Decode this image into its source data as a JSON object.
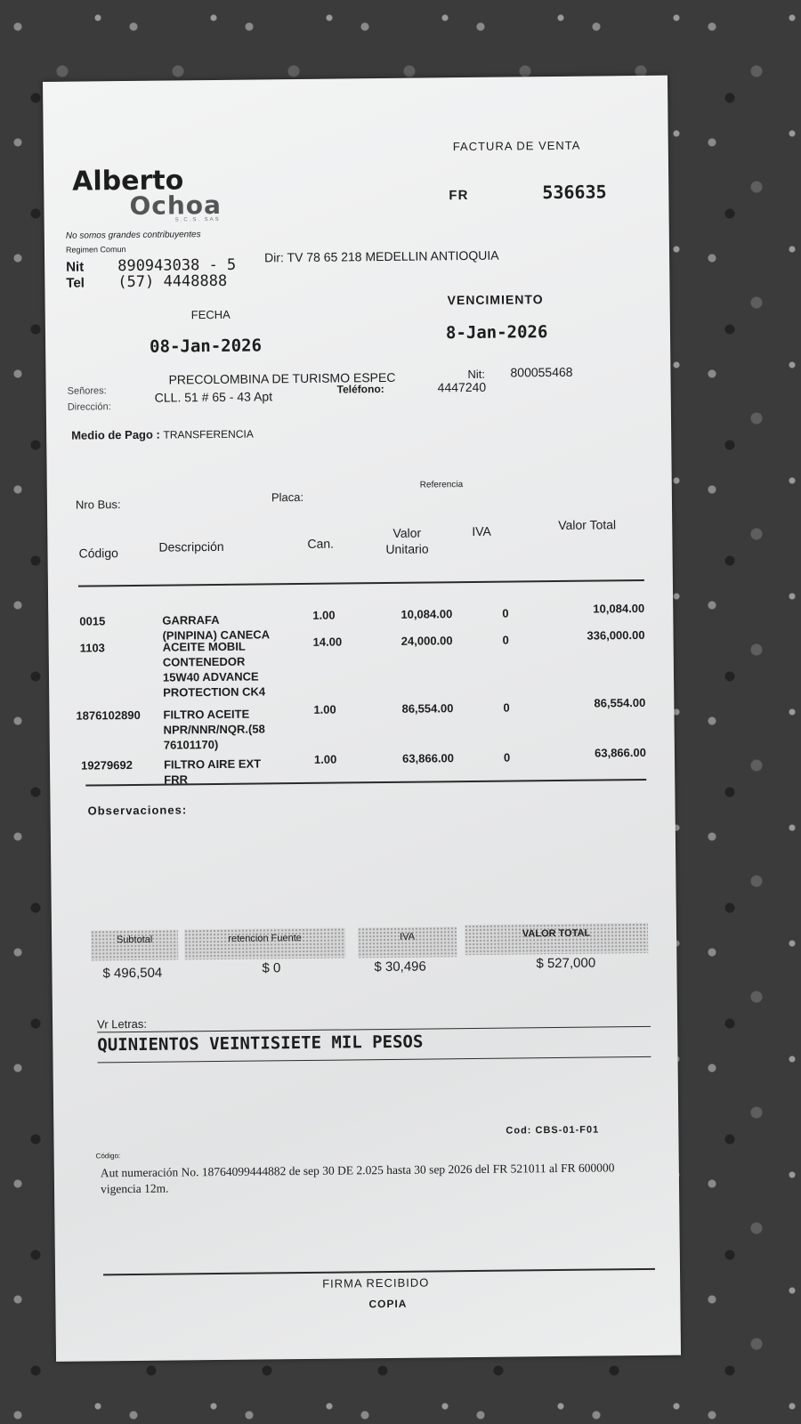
{
  "header": {
    "doc_type": "FACTURA DE VENTA",
    "logo": {
      "line1": "Alberto",
      "line2": "Ochoa",
      "line3": "S.C.S. SAS"
    },
    "fr_label": "FR",
    "invoice_number": "536635",
    "tax_note": "No somos grandes contribuyentes",
    "regime": "Regimen Comun",
    "nit_label": "Nit",
    "nit": "890943038 - 5",
    "address": "Dir: TV 78 65 218 MEDELLIN ANTIOQUIA",
    "tel_label": "Tel",
    "tel": "(57) 4448888",
    "fecha_label": "FECHA",
    "fecha": "08-Jan-2026",
    "vencimiento_label": "VENCIMIENTO",
    "vencimiento": "8-Jan-2026"
  },
  "customer": {
    "senores_label": "Señores:",
    "name": "PRECOLOMBINA DE TURISMO ESPEC",
    "nit_label": "Nit:",
    "nit": "800055468",
    "direccion_label": "Dirección:",
    "direccion": "CLL. 51 # 65 - 43 Apt",
    "telefono_label": "Teléfono:",
    "telefono": "4447240",
    "medio_pago_label": "Medio de Pago :",
    "medio_pago": "TRANSFERENCIA",
    "nro_bus_label": "Nro Bus:",
    "placa_label": "Placa:",
    "referencia_label": "Referencia"
  },
  "table": {
    "columns": [
      "Código",
      "Descripción",
      "Can.",
      "Valor Unitario",
      "IVA",
      "Valor Total"
    ],
    "rows": [
      {
        "codigo": "0015",
        "descripcion": [
          "GARRAFA",
          "(PINPINA) CANECA"
        ],
        "cantidad": "1.00",
        "unitario": "10,084.00",
        "iva": "0",
        "total": "10,084.00"
      },
      {
        "codigo": "1103",
        "descripcion": [
          "ACEITE MOBIL",
          "CONTENEDOR",
          "15W40 ADVANCE",
          "PROTECTION CK4"
        ],
        "cantidad": "14.00",
        "unitario": "24,000.00",
        "iva": "0",
        "total": "336,000.00"
      },
      {
        "codigo": "1876102890",
        "descripcion": [
          "FILTRO ACEITE",
          "NPR/NNR/NQR.(58",
          "76101170)"
        ],
        "cantidad": "1.00",
        "unitario": "86,554.00",
        "iva": "0",
        "total": "86,554.00"
      },
      {
        "codigo": "19279692",
        "descripcion": [
          "FILTRO AIRE EXT",
          "FRR"
        ],
        "cantidad": "1.00",
        "unitario": "63,866.00",
        "iva": "0",
        "total": "63,866.00"
      }
    ]
  },
  "observaciones_label": "Observaciones:",
  "totals": {
    "subtotal_label": "Subtotal",
    "subtotal": "$ 496,504",
    "retencion_label": "retencion Fuente",
    "retencion": "$ 0",
    "iva_label": "IVA",
    "iva": "$ 30,496",
    "total_label": "VALOR TOTAL",
    "total": "$ 527,000"
  },
  "letras": {
    "label": "Vr Letras:",
    "value": "QUINIENTOS VEINTISIETE MIL PESOS"
  },
  "footer": {
    "cod": "Cod: CBS-01-F01",
    "codigo_label": "Código:",
    "authorization": "Aut numeración No. 18764099444882 de sep 30 DE 2.025 hasta 30 sep 2026 del FR 521011 al FR 600000 vigencia 12m.",
    "firma": "FIRMA RECIBIDO",
    "copia": "COPIA"
  }
}
